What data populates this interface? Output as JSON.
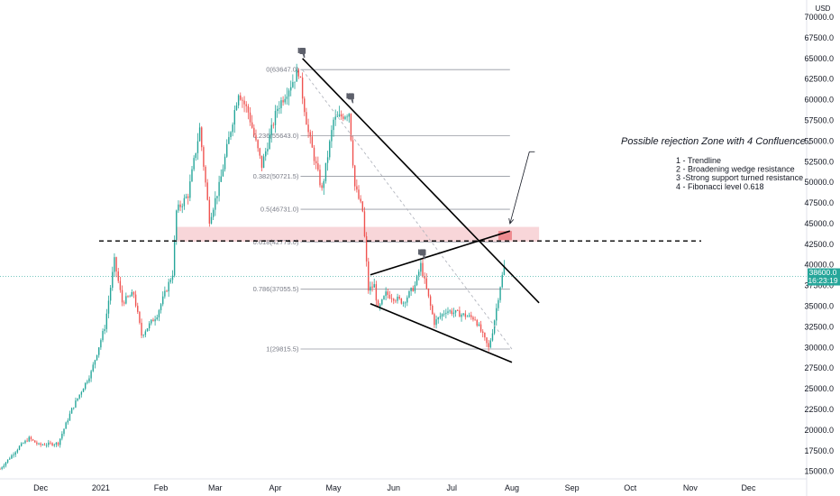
{
  "chart_data": {
    "type": "candlestick",
    "currency_label": "USD",
    "y_axis": {
      "ylim": [
        14200,
        71200
      ],
      "ticks": [
        "70000.0",
        "67500.0",
        "65000.0",
        "62500.0",
        "60000.0",
        "57500.0",
        "55000.0",
        "52500.0",
        "50000.0",
        "47500.0",
        "45000.0",
        "42500.0",
        "40000.0",
        "37500.0",
        "35000.0",
        "32500.0",
        "30000.0",
        "27500.0",
        "25000.0",
        "22500.0",
        "20000.0",
        "17500.0",
        "15000.0"
      ],
      "tick_values": [
        70000,
        67500,
        65000,
        62500,
        60000,
        57500,
        55000,
        52500,
        50000,
        47500,
        45000,
        42500,
        40000,
        37500,
        35000,
        32500,
        30000,
        27500,
        25000,
        22500,
        20000,
        17500,
        15000
      ]
    },
    "x_axis": {
      "xlim": [
        "2020-11-10",
        "2021-12-31"
      ],
      "ticks": [
        {
          "label": "Dec",
          "date": "2020-12-01"
        },
        {
          "label": "2021",
          "date": "2021-01-01"
        },
        {
          "label": "Feb",
          "date": "2021-02-01"
        },
        {
          "label": "Mar",
          "date": "2021-03-01"
        },
        {
          "label": "Apr",
          "date": "2021-04-01"
        },
        {
          "label": "May",
          "date": "2021-05-01"
        },
        {
          "label": "Jun",
          "date": "2021-06-01"
        },
        {
          "label": "Jul",
          "date": "2021-07-01"
        },
        {
          "label": "Aug",
          "date": "2021-08-01"
        },
        {
          "label": "Sep",
          "date": "2021-09-01"
        },
        {
          "label": "Oct",
          "date": "2021-10-01"
        },
        {
          "label": "Nov",
          "date": "2021-11-01"
        },
        {
          "label": "Dec",
          "date": "2021-12-01"
        }
      ]
    },
    "price_anchors": [
      [
        "2020-11-10",
        15300
      ],
      [
        "2020-11-20",
        18000
      ],
      [
        "2020-11-25",
        19000
      ],
      [
        "2020-11-30",
        18200
      ],
      [
        "2020-12-10",
        18400
      ],
      [
        "2020-12-17",
        22500
      ],
      [
        "2020-12-27",
        27000
      ],
      [
        "2021-01-03",
        32500
      ],
      [
        "2021-01-08",
        40500
      ],
      [
        "2021-01-12",
        35500
      ],
      [
        "2021-01-18",
        36500
      ],
      [
        "2021-01-22",
        31500
      ],
      [
        "2021-01-30",
        34000
      ],
      [
        "2021-02-07",
        39000
      ],
      [
        "2021-02-09",
        46500
      ],
      [
        "2021-02-15",
        48500
      ],
      [
        "2021-02-21",
        56500
      ],
      [
        "2021-02-26",
        45500
      ],
      [
        "2021-03-03",
        49500
      ],
      [
        "2021-03-13",
        61000
      ],
      [
        "2021-03-18",
        58500
      ],
      [
        "2021-03-25",
        52000
      ],
      [
        "2021-04-02",
        59000
      ],
      [
        "2021-04-13",
        63500
      ],
      [
        "2021-04-18",
        56000
      ],
      [
        "2021-04-25",
        49000
      ],
      [
        "2021-05-01",
        57500
      ],
      [
        "2021-05-09",
        58500
      ],
      [
        "2021-05-12",
        49500
      ],
      [
        "2021-05-16",
        46500
      ],
      [
        "2021-05-19",
        37000
      ],
      [
        "2021-05-22",
        37500
      ],
      [
        "2021-05-24",
        34500
      ],
      [
        "2021-05-28",
        36500
      ],
      [
        "2021-06-06",
        35500
      ],
      [
        "2021-06-12",
        37500
      ],
      [
        "2021-06-15",
        40000
      ],
      [
        "2021-06-22",
        33000
      ],
      [
        "2021-06-28",
        34500
      ],
      [
        "2021-07-06",
        34000
      ],
      [
        "2021-07-13",
        33500
      ],
      [
        "2021-07-20",
        29900
      ],
      [
        "2021-07-22",
        32000
      ],
      [
        "2021-07-26",
        37500
      ],
      [
        "2021-07-28",
        39800
      ]
    ],
    "last_price_label": "38600.0",
    "countdown_label": "16:23:19",
    "last_price": 38600,
    "fibonacci": {
      "levels": [
        {
          "label": "0(63647.0)",
          "value": 63647
        },
        {
          "label": "0.236(55643.0)",
          "value": 55643
        },
        {
          "label": "0.382(50721.5)",
          "value": 50721.5
        },
        {
          "label": "0.5(46731.0)",
          "value": 46731
        },
        {
          "label": "0.618(42779.0)",
          "value": 42779
        },
        {
          "label": "0.786(37055.5)",
          "value": 37055.5
        },
        {
          "label": "1(29815.5)",
          "value": 29815.5
        }
      ],
      "start_date": "2021-04-14",
      "end_date": "2021-07-31"
    },
    "horizontal_level": 42900,
    "resistance_zone": {
      "from_date": "2021-02-09",
      "to_date": "2021-08-15",
      "low": 42800,
      "high": 44600
    },
    "confluence_box": {
      "from_date": "2021-07-25",
      "to_date": "2021-08-01",
      "low": 43000,
      "high": 44100
    },
    "trendline": [
      [
        "2021-04-15",
        65000
      ],
      [
        "2021-08-15",
        35400
      ]
    ],
    "wedge_upper": [
      [
        "2021-05-20",
        38800
      ],
      [
        "2021-07-31",
        44100
      ]
    ],
    "wedge_lower": [
      [
        "2021-05-20",
        35300
      ],
      [
        "2021-08-01",
        28200
      ]
    ],
    "dotted_diagonal": [
      [
        "2021-04-15",
        63600
      ],
      [
        "2021-08-01",
        29800
      ]
    ],
    "rejection_markers": [
      {
        "date": "2021-04-15",
        "price": 65200
      },
      {
        "date": "2021-05-10",
        "price": 59700
      },
      {
        "date": "2021-06-16",
        "price": 40800
      }
    ],
    "arrow": {
      "from": [
        "2021-08-10",
        53700
      ],
      "to": [
        "2021-07-31",
        45000
      ]
    },
    "annotation": {
      "title": "Possible rejection Zone with 4 Confluence :",
      "items": [
        "1 - Trendline",
        "2 - Broadening wedge resistance",
        "3 -Strong support turned resistance",
        "4 - Fibonacci level 0.618"
      ]
    }
  },
  "colors": {
    "up": "#26a69a",
    "down": "#ef5350",
    "zone_fill": "#f7cfd2",
    "zone_dark": "#ee8a8f",
    "fib_line": "#9598a1",
    "last_price_line": "#26a69a",
    "last_price_tag": "#26a69a",
    "text": "#131722",
    "fib_text": "#787b86",
    "grid_border": "#e0e3eb"
  }
}
